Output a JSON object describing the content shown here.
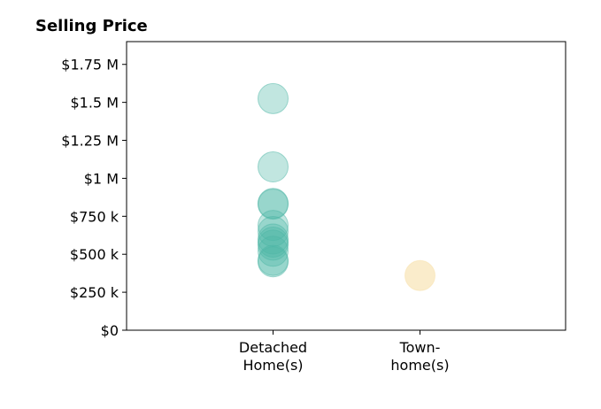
{
  "chart_data": {
    "type": "scatter",
    "title": "Selling Price",
    "xlabel": "",
    "ylabel": "",
    "ylim": [
      0,
      1900000
    ],
    "grid": false,
    "categories": [
      [
        "Detached",
        "Home(s)"
      ],
      [
        "Town-",
        "home(s)"
      ]
    ],
    "y_ticks": [
      {
        "value": 0,
        "label": "$0"
      },
      {
        "value": 250000,
        "label": "$250 k"
      },
      {
        "value": 500000,
        "label": "$500 k"
      },
      {
        "value": 750000,
        "label": "$750 k"
      },
      {
        "value": 1000000,
        "label": "$1 M"
      },
      {
        "value": 1250000,
        "label": "$1.25 M"
      },
      {
        "value": 1500000,
        "label": "$1.5 M"
      },
      {
        "value": 1750000,
        "label": "$1.75 M"
      }
    ],
    "series": [
      {
        "color": "#4db6a6",
        "category_index": 0,
        "values": [
          1525000,
          1075000,
          835000,
          830000,
          690000,
          650000,
          600000,
          580000,
          560000,
          520000,
          460000,
          450000
        ]
      },
      {
        "color": "#f7dfa8",
        "category_index": 1,
        "values": [
          360000
        ]
      }
    ]
  }
}
